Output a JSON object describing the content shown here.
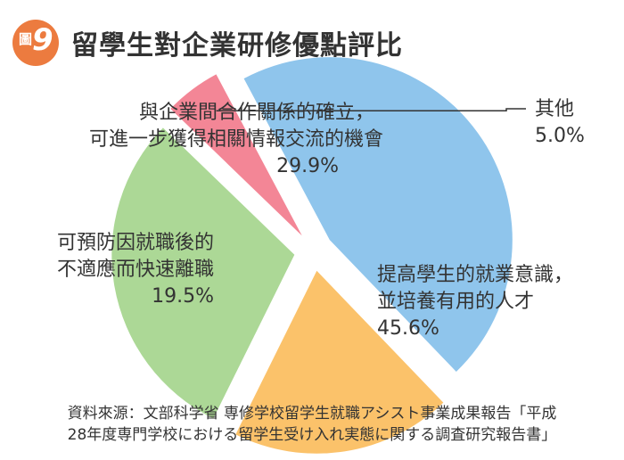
{
  "header": {
    "badge_prefix": "圖",
    "badge_number": "9"
  },
  "chart_data": {
    "type": "pie",
    "title": "留學生對企業研修優點評比",
    "slices": [
      {
        "label_lines": [
          "提高學生的就業意識，",
          "並培養有用的人才"
        ],
        "value": 45.6,
        "value_label": "45.6%",
        "color": "#8fc5ec"
      },
      {
        "label_lines": [
          "可預防因就職後的",
          "不適應而快速離職"
        ],
        "value": 19.5,
        "value_label": "19.5%",
        "color": "#fbc26a"
      },
      {
        "label_lines": [
          "與企業間合作關係的確立，",
          "可進一步獲得相關情報交流的機會"
        ],
        "value": 29.9,
        "value_label": "29.9%",
        "color": "#acd896"
      },
      {
        "label_lines": [
          "其他"
        ],
        "value": 5.0,
        "value_label": "5.0%",
        "color": "#f38696"
      }
    ]
  },
  "source_lines": [
    "資料來源：文部科学省 専修学校留学生就職アシスト事業成果報告「平成",
    "28年度専門学校における留学生受け入れ実態に関する調査研究報告書」"
  ]
}
